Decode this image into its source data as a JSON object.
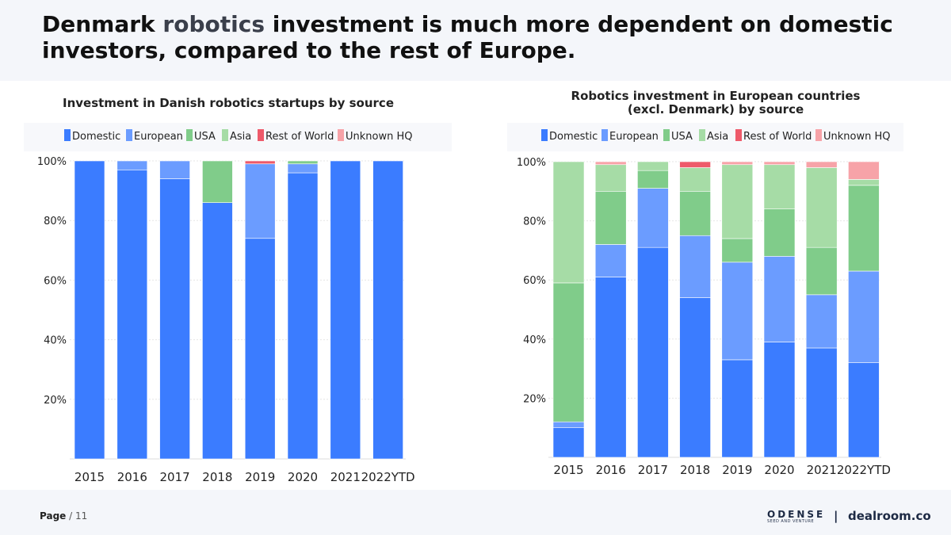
{
  "headline": {
    "part1": "Denmark ",
    "accent": "robotics",
    "part2": " investment is much more dependent on domestic investors, compared to the rest of Europe."
  },
  "footer": {
    "page_label": "Page",
    "page_sep": " / ",
    "page_number": "11",
    "odense_logo": "ODENSE",
    "odense_tagline": "SEED AND VENTURE",
    "separator": "|",
    "dealroom_logo": "dealroom.co"
  },
  "chart_data": [
    {
      "type": "bar",
      "stacked": true,
      "title": "Investment in Danish robotics startups by source",
      "title_lines": [
        "Investment in Danish robotics startups by source"
      ],
      "categories": [
        "2015",
        "2016",
        "2017",
        "2018",
        "2019",
        "2020",
        "2021",
        "2022YTD"
      ],
      "ylim": [
        0,
        100
      ],
      "yticks": [
        20,
        40,
        60,
        80,
        100
      ],
      "yticklabels": [
        "20%",
        "40%",
        "60%",
        "80%",
        "100%"
      ],
      "legend_position": "top",
      "series": [
        {
          "name": "Domestic",
          "color": "#3b7cff",
          "values": [
            100,
            97,
            94,
            86,
            74,
            96,
            100,
            100
          ]
        },
        {
          "name": "European",
          "color": "#6b9cff",
          "values": [
            0,
            3,
            6,
            0,
            25,
            3,
            0,
            0
          ]
        },
        {
          "name": "USA",
          "color": "#80cc8a",
          "values": [
            0,
            0,
            0,
            14,
            0,
            1,
            0,
            0
          ]
        },
        {
          "name": "Asia",
          "color": "#a6dca6",
          "values": [
            0,
            0,
            0,
            0,
            0,
            0,
            0,
            0
          ]
        },
        {
          "name": "Rest of World",
          "color": "#ee5a6a",
          "values": [
            0,
            0,
            0,
            0,
            1,
            0,
            0,
            0
          ]
        },
        {
          "name": "Unknown HQ",
          "color": "#f7a3a8",
          "values": [
            0,
            0,
            0,
            0,
            0,
            0,
            0,
            0
          ]
        }
      ]
    },
    {
      "type": "bar",
      "stacked": true,
      "title": "Robotics investment in European countries (excl. Denmark) by source",
      "title_lines": [
        "Robotics investment in European countries",
        "(excl. Denmark) by source"
      ],
      "categories": [
        "2015",
        "2016",
        "2017",
        "2018",
        "2019",
        "2020",
        "2021",
        "2022YTD"
      ],
      "ylim": [
        0,
        100
      ],
      "yticks": [
        20,
        40,
        60,
        80,
        100
      ],
      "yticklabels": [
        "20%",
        "40%",
        "60%",
        "80%",
        "100%"
      ],
      "legend_position": "top",
      "series": [
        {
          "name": "Domestic",
          "color": "#3b7cff",
          "values": [
            10,
            61,
            71,
            54,
            33,
            39,
            37,
            32
          ]
        },
        {
          "name": "European",
          "color": "#6b9cff",
          "values": [
            2,
            11,
            20,
            21,
            33,
            29,
            18,
            31
          ]
        },
        {
          "name": "USA",
          "color": "#80cc8a",
          "values": [
            47,
            18,
            6,
            15,
            8,
            16,
            16,
            29
          ]
        },
        {
          "name": "Asia",
          "color": "#a6dca6",
          "values": [
            41,
            9,
            3,
            8,
            25,
            15,
            27,
            2
          ]
        },
        {
          "name": "Rest of World",
          "color": "#ee5a6a",
          "values": [
            0,
            0,
            0,
            2,
            0,
            0,
            0,
            0
          ]
        },
        {
          "name": "Unknown HQ",
          "color": "#f7a3a8",
          "values": [
            0,
            1,
            0,
            0,
            1,
            1,
            2,
            6
          ]
        }
      ]
    }
  ]
}
